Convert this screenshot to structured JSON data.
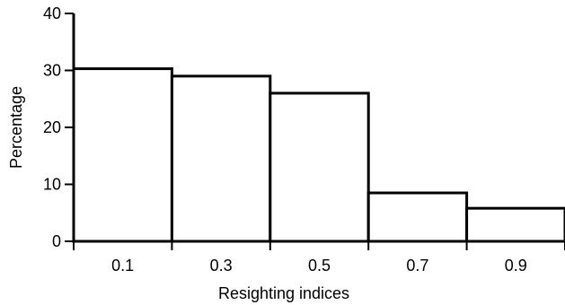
{
  "chart_data": {
    "type": "bar",
    "categories": [
      "0.1",
      "0.3",
      "0.5",
      "0.7",
      "0.9"
    ],
    "values": [
      30.3,
      29.0,
      26.0,
      8.5,
      5.8
    ],
    "xlabel": "Resighting indices",
    "ylabel": "Percentage",
    "ylim": [
      0,
      40
    ],
    "yticks": [
      "0",
      "10",
      "20",
      "30",
      "40"
    ],
    "grid": false,
    "colors": {
      "bar_fill": "#ffffff",
      "bar_stroke": "#000000",
      "axis": "#000000"
    }
  }
}
